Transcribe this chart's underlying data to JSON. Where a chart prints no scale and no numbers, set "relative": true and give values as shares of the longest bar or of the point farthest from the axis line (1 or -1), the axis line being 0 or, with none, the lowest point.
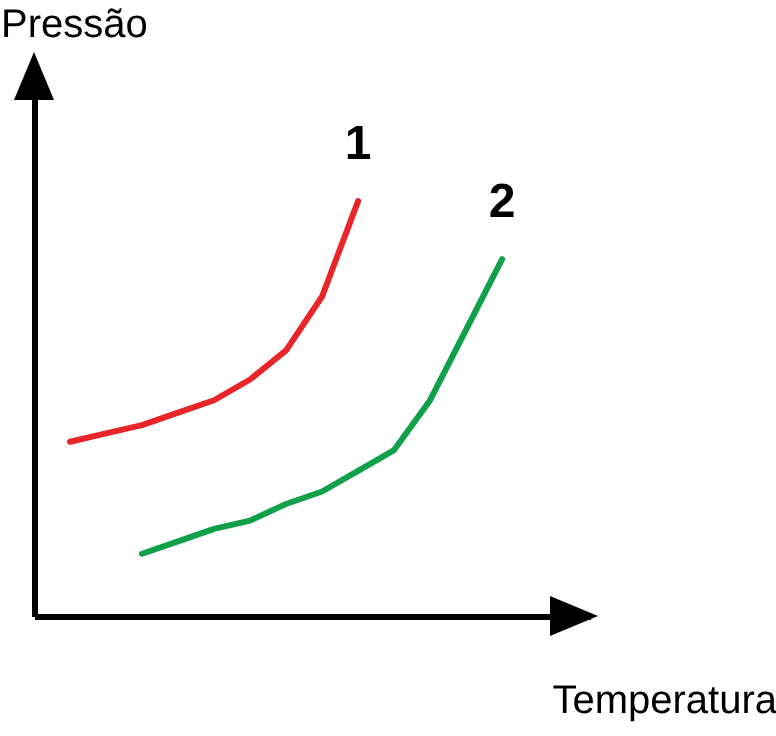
{
  "chart_data": {
    "type": "line",
    "relative": true,
    "xlabel": "Temperatura",
    "ylabel": "Pressão",
    "categories": [
      null,
      null,
      null,
      null,
      null,
      null,
      null,
      null,
      null,
      null,
      null,
      null,
      null
    ],
    "series": [
      {
        "name": "1",
        "color": "#e8262a",
        "values": [
          0.42,
          0.44,
          0.46,
          0.49,
          0.52,
          0.57,
          0.64,
          0.77,
          1.0,
          null,
          null,
          null,
          null
        ]
      },
      {
        "name": "2",
        "color": "#10a04a",
        "values": [
          null,
          null,
          0.15,
          0.18,
          0.21,
          0.23,
          0.27,
          0.3,
          0.35,
          0.4,
          0.52,
          0.69,
          0.86
        ]
      }
    ],
    "marker": "none",
    "line_style": "solid",
    "grid": false,
    "legend": false
  }
}
